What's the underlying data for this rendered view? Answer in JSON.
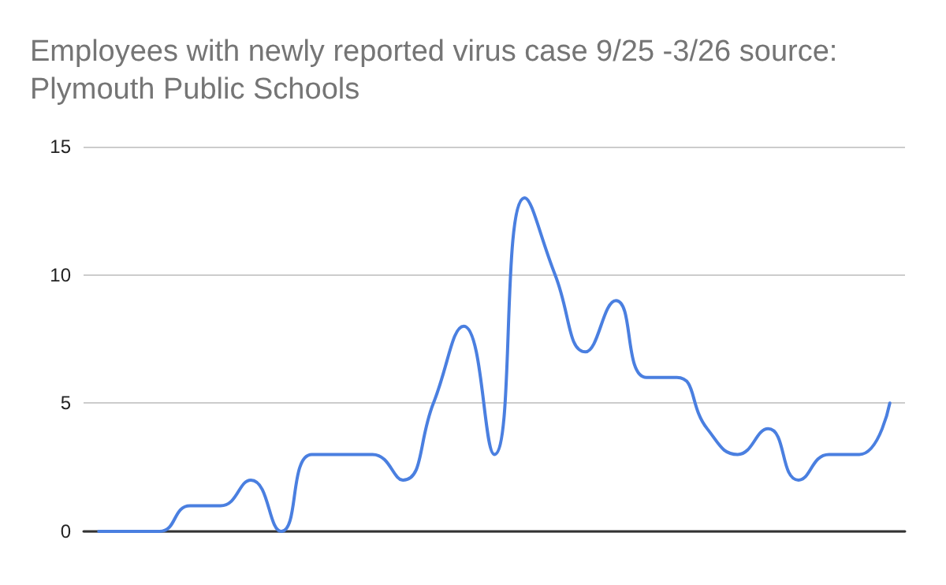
{
  "chart_data": {
    "type": "line",
    "title": "Employees with newly reported virus case 9/25 -3/26 source: Plymouth Public Schools",
    "categories": [
      null,
      null,
      null,
      null,
      null,
      null,
      null,
      null,
      null,
      null,
      null,
      null,
      null,
      null,
      null,
      null,
      null,
      null,
      null,
      null,
      null,
      null,
      null,
      null,
      null,
      null,
      null
    ],
    "series": [
      {
        "color": "#4a7fe0",
        "values": [
          0,
          0,
          0,
          1,
          1,
          2,
          0,
          3,
          3,
          3,
          2,
          5,
          8,
          3,
          13,
          10,
          7,
          9,
          6,
          6,
          4,
          3,
          4,
          2,
          3,
          3,
          5
        ]
      }
    ],
    "ylim": [
      0,
      15
    ],
    "yticks": [
      0,
      5,
      10,
      15
    ],
    "grid": "y",
    "marker": "none",
    "line_style": "solid",
    "tick_labels": "y"
  }
}
